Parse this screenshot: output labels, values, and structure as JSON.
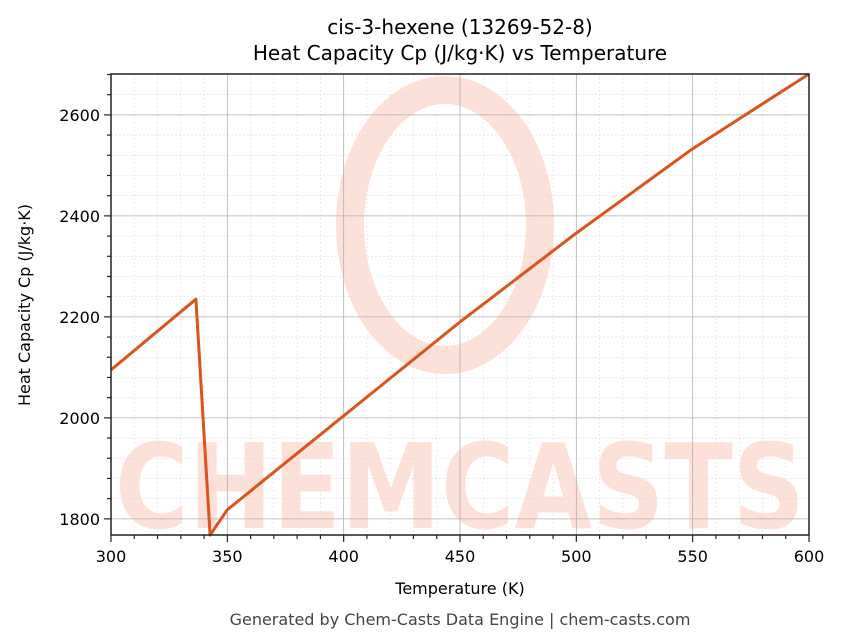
{
  "title_line1": "cis-3-hexene (13269-52-8)",
  "title_line2": "Heat Capacity Cp (J/kg·K) vs Temperature",
  "footer": "Generated by Chem-Casts Data Engine | chem-casts.com",
  "watermark": "CHEMCASTS",
  "colors": {
    "line": "#d9541e",
    "watermark": "#fde0d8",
    "grid_major": "#b0b0b0",
    "grid_minor": "#dddddd"
  },
  "chart_data": {
    "type": "line",
    "title": "cis-3-hexene (13269-52-8)\nHeat Capacity Cp (J/kg·K) vs Temperature",
    "xlabel": "Temperature (K)",
    "ylabel": "Heat Capacity Cp (J/kg·K)",
    "xlim": [
      300,
      600
    ],
    "ylim": [
      1768,
      2681
    ],
    "xticks": [
      300,
      350,
      400,
      450,
      500,
      550,
      600
    ],
    "yticks": [
      1800,
      2000,
      2200,
      2400,
      2600
    ],
    "grid": true,
    "legend": "none",
    "series": [
      {
        "name": "Cp",
        "x": [
          300,
          336.5,
          342.6,
          350,
          400,
          450,
          500,
          550,
          600
        ],
        "y": [
          2095,
          2235,
          1768,
          1818,
          2004,
          2190,
          2366,
          2533,
          2681
        ]
      }
    ]
  }
}
